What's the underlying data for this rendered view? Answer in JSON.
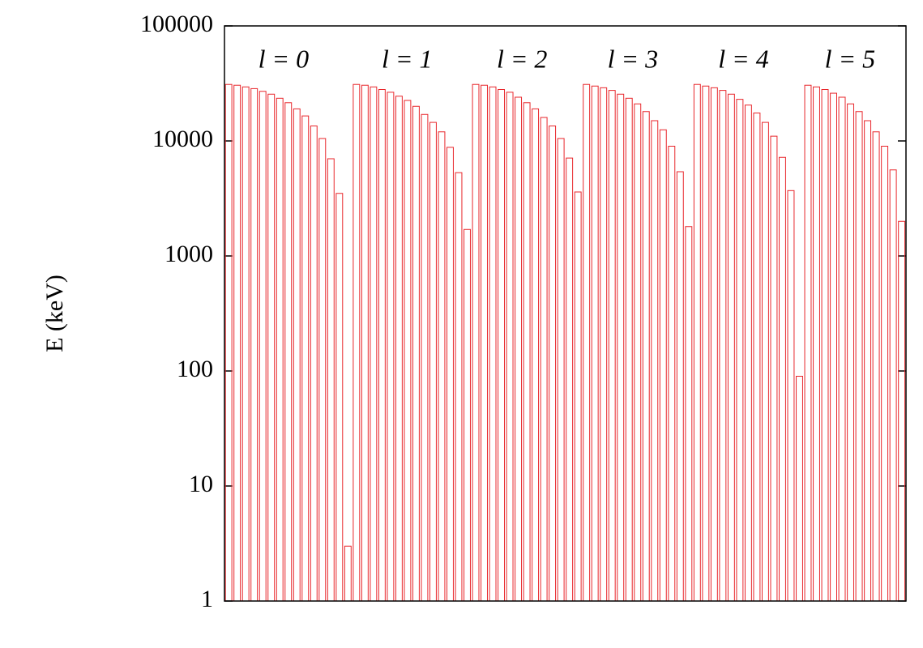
{
  "chart_data": {
    "type": "bar",
    "ylabel": "E (keV)",
    "log_scale": true,
    "ylim": [
      1,
      100000
    ],
    "yticks": [
      1,
      10,
      100,
      1000,
      10000,
      100000
    ],
    "color": "#e8262b",
    "groups": [
      {
        "label": "l = 0",
        "values": [
          31000,
          30500,
          29500,
          28500,
          27000,
          25500,
          23500,
          21500,
          19000,
          16500,
          13500,
          10500,
          7000,
          3500,
          3
        ]
      },
      {
        "label": "l = 1",
        "values": [
          31000,
          30500,
          29500,
          28000,
          26500,
          24500,
          22500,
          20000,
          17000,
          14500,
          12000,
          8800,
          5300,
          1700
        ]
      },
      {
        "label": "l = 2",
        "values": [
          31000,
          30500,
          29500,
          28000,
          26500,
          24000,
          21500,
          19000,
          16000,
          13500,
          10500,
          7100,
          3600
        ]
      },
      {
        "label": "l = 3",
        "values": [
          31000,
          30000,
          29000,
          27500,
          25500,
          23500,
          21000,
          18000,
          15000,
          12500,
          9000,
          5400,
          1800
        ]
      },
      {
        "label": "l = 4",
        "values": [
          31000,
          30000,
          29000,
          27500,
          25500,
          23000,
          20500,
          17500,
          14500,
          11000,
          7200,
          3700,
          90
        ]
      },
      {
        "label": "l = 5",
        "values": [
          30500,
          29500,
          28000,
          26000,
          24000,
          21000,
          18000,
          15000,
          12000,
          9000,
          5600,
          2000
        ]
      }
    ]
  }
}
